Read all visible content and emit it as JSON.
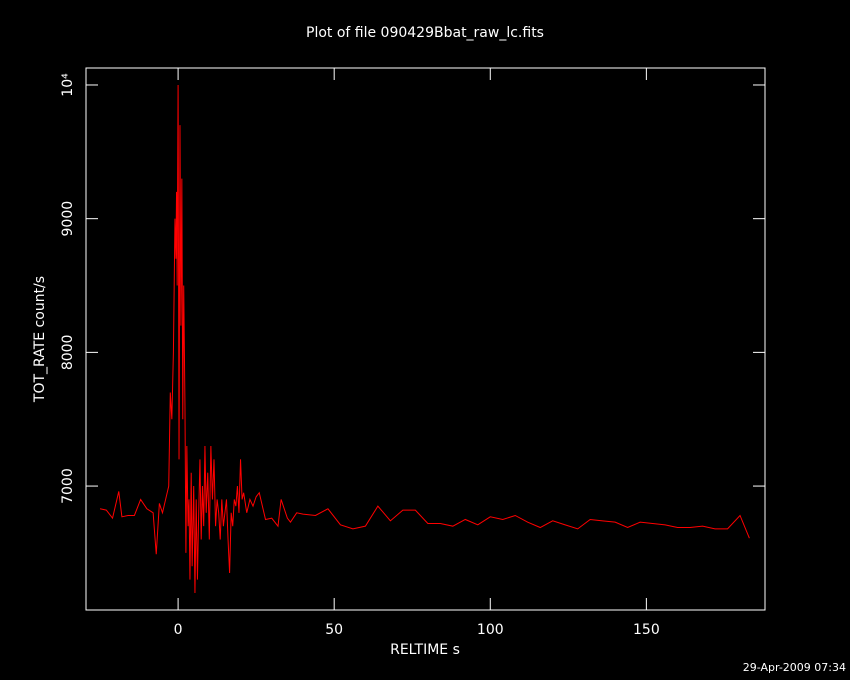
{
  "chart_data": {
    "type": "line",
    "title": "Plot of file 090429Bbat_raw_lc.fits",
    "xlabel": "RELTIME  s",
    "ylabel": "TOT_RATE  count/s",
    "footer": "29-Apr-2009 07:34",
    "color": "#ff0000",
    "xlim": [
      -29.5,
      188
    ],
    "xticks": [
      0,
      50,
      100,
      150
    ],
    "ylim": [
      6073,
      10127
    ],
    "yticks": [
      7000,
      8000,
      9000,
      {
        "value": 10000,
        "label": "10⁴"
      }
    ],
    "x": [
      -25,
      -23,
      -21,
      -19,
      -18,
      -16,
      -14,
      -12,
      -10,
      -8,
      -7,
      -6,
      -5,
      -4,
      -3,
      -2.5,
      -2,
      -1.5,
      -1,
      -0.7,
      -0.5,
      -0.3,
      0,
      0.3,
      0.6,
      0.9,
      1.2,
      1.5,
      1.8,
      2.2,
      2.5,
      2.8,
      3.2,
      3.5,
      3.8,
      4.2,
      4.5,
      5,
      5.4,
      5.8,
      6.2,
      6.6,
      7,
      7.4,
      7.8,
      8.2,
      8.6,
      9,
      9.5,
      10,
      10.5,
      11,
      11.5,
      12,
      12.5,
      13,
      13.5,
      14,
      14.5,
      15,
      15.5,
      16,
      16.5,
      17,
      17.5,
      18,
      18.5,
      19,
      19.5,
      20,
      20.5,
      21,
      22,
      23,
      24,
      25,
      26,
      28,
      30,
      32,
      33,
      35,
      36,
      38,
      40,
      44,
      48,
      52,
      56,
      60,
      64,
      68,
      72,
      76,
      80,
      84,
      88,
      92,
      96,
      100,
      104,
      108,
      112,
      116,
      120,
      124,
      128,
      132,
      136,
      140,
      144,
      148,
      152,
      156,
      160,
      164,
      168,
      172,
      176,
      180,
      183
    ],
    "values": [
      6830,
      6820,
      6760,
      6960,
      6770,
      6780,
      6780,
      6900,
      6830,
      6800,
      6490,
      6870,
      6800,
      6900,
      7000,
      7700,
      7500,
      8000,
      9000,
      8700,
      9200,
      8500,
      10000,
      7200,
      9700,
      8200,
      9300,
      7500,
      8500,
      7600,
      6500,
      7300,
      6700,
      6900,
      6300,
      7100,
      6400,
      7000,
      6200,
      6900,
      6300,
      6800,
      7200,
      6600,
      7000,
      6700,
      7300,
      6800,
      7100,
      6600,
      7300,
      6900,
      7200,
      6700,
      6900,
      6800,
      6600,
      6900,
      6700,
      6800,
      6900,
      6600,
      6350,
      6800,
      6700,
      6900,
      6850,
      7000,
      6800,
      7200,
      6900,
      6950,
      6800,
      6900,
      6850,
      6920,
      6950,
      6750,
      6760,
      6700,
      6900,
      6760,
      6730,
      6800,
      6790,
      6780,
      6830,
      6710,
      6680,
      6700,
      6850,
      6740,
      6820,
      6820,
      6720,
      6720,
      6700,
      6750,
      6710,
      6770,
      6750,
      6780,
      6730,
      6690,
      6740,
      6710,
      6680,
      6750,
      6740,
      6730,
      6690,
      6730,
      6720,
      6710,
      6690,
      6690,
      6700,
      6680,
      6680,
      6780,
      6610
    ]
  }
}
